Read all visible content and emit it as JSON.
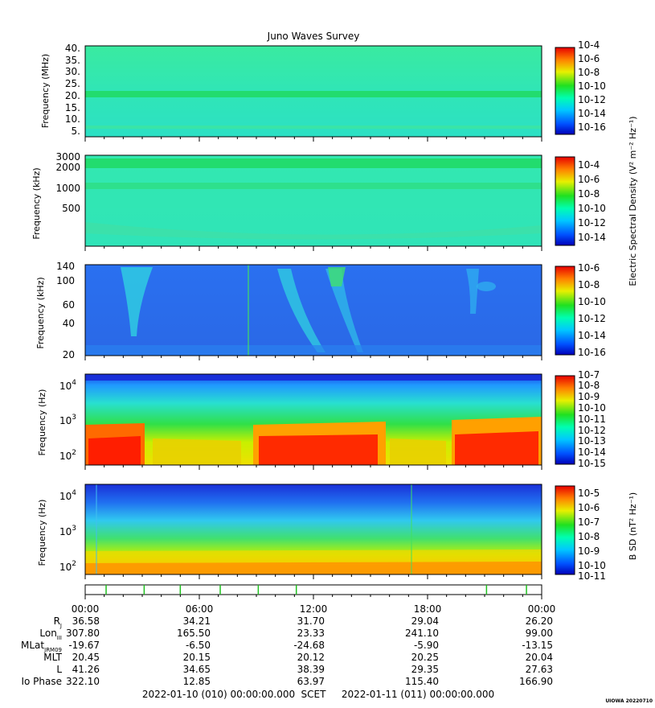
{
  "title": "Juno Waves Survey",
  "footer_left": "2022-01-10 (010) 00:00:00.000",
  "footer_mid": "SCET",
  "footer_right": "2022-01-11 (011) 00:00:00.000",
  "credit": "UIOWA 20220710",
  "colorbar_label_e": "Electric Spectral Density (V² m⁻² Hz⁻¹)",
  "colorbar_label_b": "B SD (nT² Hz⁻¹)",
  "colors": {
    "background_field": "#2fe6b4",
    "band": "#22e07a",
    "low_blue": "#2a6ee8",
    "hot": "#ff2a00"
  },
  "chart_data": [
    {
      "type": "heatmap",
      "name": "panel-hfr-high",
      "ylabel": "Frequency (MHz)",
      "yticks": [
        "40.",
        "35.",
        "30.",
        "25.",
        "20.",
        "15.",
        "10.",
        "5."
      ],
      "ylim": [
        3.5,
        41
      ],
      "colorbar_ticks": [
        "10-4",
        "10-6",
        "10-8",
        "10-10",
        "10-12",
        "10-14",
        "10-16"
      ],
      "features": "narrow intense band near 21 MHz"
    },
    {
      "type": "heatmap",
      "name": "panel-hfr-low",
      "ylabel": "Frequency (kHz)",
      "yticks": [
        "3000",
        "2000",
        "1000",
        "500"
      ],
      "ylim": [
        140,
        3000
      ],
      "colorbar_ticks": [
        "10-4",
        "10-6",
        "10-8",
        "10-10",
        "10-12",
        "10-14"
      ],
      "features": "bands near 2500 kHz, 1000 kHz and 200 kHz"
    },
    {
      "type": "heatmap",
      "name": "panel-lfr-high",
      "ylabel": "Frequency (kHz)",
      "yticks": [
        "140",
        "100",
        "60",
        "40",
        "20"
      ],
      "ylim": [
        20,
        140
      ],
      "colorbar_ticks": [
        "10-6",
        "10-8",
        "10-10",
        "10-12",
        "10-14",
        "10-16"
      ],
      "features": "arc-shaped emissions near 02:00, 09:00-11:00 and 19:30"
    },
    {
      "type": "heatmap",
      "name": "panel-lfr-low",
      "ylabel": "Frequency (Hz)",
      "yticks": [
        "10^4",
        "10^3",
        "10^2"
      ],
      "ylim": [
        50,
        20000
      ],
      "colorbar_ticks": [
        "10-7",
        "10-8",
        "10-9",
        "10-10",
        "10-11",
        "10-12",
        "10-13",
        "10-14",
        "10-15"
      ],
      "features": "intense low-frequency emission 00:00-03:00, 09:00-15:00, 19:00-24:00"
    },
    {
      "type": "heatmap",
      "name": "panel-magnetic",
      "ylabel": "Frequency (Hz)",
      "yticks": [
        "10^4",
        "10^3",
        "10^2"
      ],
      "ylim": [
        50,
        20000
      ],
      "colorbar_ticks": [
        "10-5",
        "10-6",
        "10-7",
        "10-8",
        "10-9",
        "10-10",
        "10-11"
      ],
      "features": "enhanced power below 200 Hz throughout the day"
    }
  ],
  "time_axis": {
    "hours": [
      0,
      6,
      12,
      18,
      24
    ],
    "labels": [
      "00:00",
      "06:00",
      "12:00",
      "18:00",
      "00:00"
    ],
    "event_marks_hours": [
      1.1,
      3.1,
      5.0,
      7.1,
      9.1,
      11.1,
      21.1,
      23.2
    ]
  },
  "ephemeris": [
    {
      "label": "R",
      "sub": "J",
      "values": [
        "36.58",
        "34.21",
        "31.70",
        "29.04",
        "26.20"
      ]
    },
    {
      "label": "Lon",
      "sub": "III",
      "values": [
        "307.80",
        "165.50",
        "23.33",
        "241.10",
        "99.00"
      ]
    },
    {
      "label": "MLat",
      "sub": "JRM09",
      "values": [
        "-19.67",
        "-6.50",
        "-24.68",
        "-5.90",
        "-13.15"
      ]
    },
    {
      "label": "MLT",
      "sub": "",
      "values": [
        "20.45",
        "20.15",
        "20.12",
        "20.25",
        "20.04"
      ]
    },
    {
      "label": "L",
      "sub": "",
      "values": [
        "41.26",
        "34.65",
        "38.39",
        "29.35",
        "27.63"
      ]
    },
    {
      "label": "Io Phase",
      "sub": "",
      "values": [
        "322.10",
        "12.85",
        "63.97",
        "115.40",
        "166.90"
      ]
    }
  ]
}
